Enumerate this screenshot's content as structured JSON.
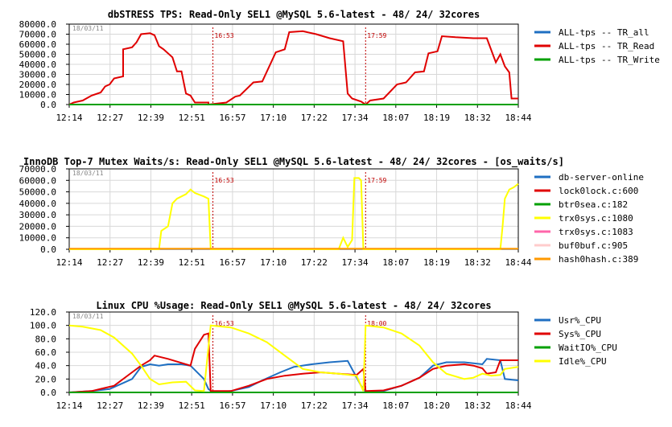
{
  "chart_data": [
    {
      "type": "line",
      "title": "dbSTRESS TPS: Read-Only SEL1 @MySQL 5.6-latest - 48/ 24/ 32cores",
      "date_stamp": "18/03/11",
      "y_ticks": [
        "80000.0",
        "70000.0",
        "60000.0",
        "50000.0",
        "40000.0",
        "30000.0",
        "20000.0",
        "10000.0",
        "0.0"
      ],
      "ylim": [
        0,
        80000
      ],
      "x_ticks": [
        "12:14",
        "12:27",
        "12:39",
        "12:51",
        "16:57",
        "17:10",
        "17:22",
        "17:34",
        "18:07",
        "18:19",
        "18:32",
        "18:44"
      ],
      "markers": [
        {
          "label": "16:53",
          "at": 0.32
        },
        {
          "label": "17:59",
          "at": 0.66
        }
      ],
      "series": [
        {
          "name": "ALL-tps -- TR_all",
          "color": "#1f6fc2",
          "values": []
        },
        {
          "name": "ALL-tps -- TR_Read",
          "color": "#e00000",
          "values": [
            [
              0,
              0
            ],
            [
              0.01,
              2000
            ],
            [
              0.03,
              4000
            ],
            [
              0.05,
              9000
            ],
            [
              0.07,
              12000
            ],
            [
              0.08,
              18000
            ],
            [
              0.09,
              20000
            ],
            [
              0.1,
              26000
            ],
            [
              0.12,
              28000
            ],
            [
              0.12,
              55000
            ],
            [
              0.14,
              57000
            ],
            [
              0.15,
              62000
            ],
            [
              0.16,
              70000
            ],
            [
              0.18,
              71000
            ],
            [
              0.19,
              69000
            ],
            [
              0.2,
              58000
            ],
            [
              0.21,
              55000
            ],
            [
              0.23,
              47000
            ],
            [
              0.24,
              33000
            ],
            [
              0.25,
              33000
            ],
            [
              0.26,
              11000
            ],
            [
              0.27,
              9000
            ],
            [
              0.28,
              2000
            ],
            [
              0.31,
              2000
            ],
            [
              0.31,
              0
            ],
            [
              0.33,
              1000
            ],
            [
              0.35,
              2000
            ],
            [
              0.37,
              8000
            ],
            [
              0.38,
              9000
            ],
            [
              0.41,
              22000
            ],
            [
              0.43,
              23000
            ],
            [
              0.46,
              52000
            ],
            [
              0.48,
              55000
            ],
            [
              0.49,
              72000
            ],
            [
              0.52,
              73000
            ],
            [
              0.55,
              70000
            ],
            [
              0.58,
              66000
            ],
            [
              0.61,
              63000
            ],
            [
              0.62,
              11000
            ],
            [
              0.63,
              6000
            ],
            [
              0.65,
              3000
            ],
            [
              0.66,
              0
            ],
            [
              0.67,
              4000
            ],
            [
              0.7,
              6000
            ],
            [
              0.73,
              20000
            ],
            [
              0.75,
              22000
            ],
            [
              0.77,
              32000
            ],
            [
              0.79,
              33000
            ],
            [
              0.8,
              51000
            ],
            [
              0.82,
              53000
            ],
            [
              0.83,
              68000
            ],
            [
              0.86,
              67000
            ],
            [
              0.9,
              66000
            ],
            [
              0.93,
              66000
            ],
            [
              0.95,
              42000
            ],
            [
              0.96,
              50000
            ],
            [
              0.97,
              38000
            ],
            [
              0.98,
              32000
            ],
            [
              0.985,
              6000
            ],
            [
              1,
              6000
            ]
          ]
        },
        {
          "name": "ALL-tps -- TR_Write",
          "color": "#00a000",
          "values": [
            [
              0,
              0
            ],
            [
              1,
              0
            ]
          ]
        }
      ]
    },
    {
      "type": "line",
      "title": "InnoDB Top-7 Mutex Waits/s: Read-Only SEL1 @MySQL 5.6-latest - 48/ 24/ 32cores - [os_waits/s]",
      "date_stamp": "18/03/11",
      "y_ticks": [
        "70000.0",
        "60000.0",
        "50000.0",
        "40000.0",
        "30000.0",
        "20000.0",
        "10000.0",
        "0.0"
      ],
      "ylim": [
        0,
        70000
      ],
      "x_ticks": [
        "12:14",
        "12:27",
        "12:39",
        "12:51",
        "16:57",
        "17:10",
        "17:22",
        "17:34",
        "18:07",
        "18:19",
        "18:32",
        "18:44"
      ],
      "markers": [
        {
          "label": "16:53",
          "at": 0.32
        },
        {
          "label": "17:59",
          "at": 0.66
        }
      ],
      "series": [
        {
          "name": "db-server-online",
          "color": "#1f6fc2",
          "values": []
        },
        {
          "name": "lock0lock.c:600",
          "color": "#e00000",
          "values": []
        },
        {
          "name": "btr0sea.c:182",
          "color": "#00a000",
          "values": []
        },
        {
          "name": "trx0sys.c:1080",
          "color": "#ffff00",
          "values": [
            [
              0,
              0
            ],
            [
              0.2,
              0
            ],
            [
              0.205,
              16000
            ],
            [
              0.22,
              20000
            ],
            [
              0.23,
              40000
            ],
            [
              0.24,
              44000
            ],
            [
              0.26,
              48000
            ],
            [
              0.27,
              52000
            ],
            [
              0.28,
              49000
            ],
            [
              0.3,
              46000
            ],
            [
              0.31,
              44000
            ],
            [
              0.315,
              0
            ],
            [
              0.6,
              0
            ],
            [
              0.61,
              10000
            ],
            [
              0.62,
              2000
            ],
            [
              0.63,
              8000
            ],
            [
              0.635,
              62000
            ],
            [
              0.645,
              62000
            ],
            [
              0.65,
              60000
            ],
            [
              0.655,
              0
            ],
            [
              0.96,
              0
            ],
            [
              0.965,
              20000
            ],
            [
              0.97,
              44000
            ],
            [
              0.98,
              52000
            ],
            [
              0.99,
              54000
            ],
            [
              1,
              57000
            ]
          ]
        },
        {
          "name": "trx0sys.c:1083",
          "color": "#ff66aa",
          "values": []
        },
        {
          "name": "buf0buf.c:905",
          "color": "#ffcccc",
          "values": []
        },
        {
          "name": "hash0hash.c:389",
          "color": "#ff9900",
          "values": [
            [
              0,
              500
            ],
            [
              1,
              500
            ]
          ]
        }
      ]
    },
    {
      "type": "line",
      "title": "Linux CPU %Usage: Read-Only SEL1 @MySQL 5.6-latest - 48/ 24/ 32cores",
      "date_stamp": "18/03/11",
      "y_ticks": [
        "120.0",
        "100.0",
        "80.0",
        "60.0",
        "40.0",
        "20.0",
        "0.0"
      ],
      "ylim": [
        0,
        120
      ],
      "x_ticks": [
        "12:14",
        "12:27",
        "12:39",
        "12:51",
        "16:57",
        "17:10",
        "17:22",
        "17:34",
        "18:07",
        "18:20",
        "18:32",
        "18:44"
      ],
      "markers": [
        {
          "label": "16:53",
          "at": 0.32
        },
        {
          "label": "18:00",
          "at": 0.66
        }
      ],
      "series": [
        {
          "name": "Usr%_CPU",
          "color": "#1f6fc2",
          "values": [
            [
              0,
              0
            ],
            [
              0.05,
              2
            ],
            [
              0.09,
              5
            ],
            [
              0.12,
              14
            ],
            [
              0.14,
              20
            ],
            [
              0.16,
              38
            ],
            [
              0.18,
              42
            ],
            [
              0.2,
              40
            ],
            [
              0.22,
              42
            ],
            [
              0.25,
              42
            ],
            [
              0.27,
              40
            ],
            [
              0.3,
              20
            ],
            [
              0.31,
              5
            ],
            [
              0.32,
              0
            ],
            [
              0.36,
              2
            ],
            [
              0.4,
              8
            ],
            [
              0.43,
              18
            ],
            [
              0.47,
              30
            ],
            [
              0.5,
              38
            ],
            [
              0.54,
              42
            ],
            [
              0.58,
              45
            ],
            [
              0.62,
              47
            ],
            [
              0.65,
              10
            ],
            [
              0.66,
              1
            ],
            [
              0.7,
              2
            ],
            [
              0.74,
              10
            ],
            [
              0.78,
              22
            ],
            [
              0.81,
              40
            ],
            [
              0.84,
              45
            ],
            [
              0.88,
              45
            ],
            [
              0.92,
              42
            ],
            [
              0.93,
              50
            ],
            [
              0.96,
              48
            ],
            [
              0.97,
              20
            ],
            [
              1,
              18
            ]
          ]
        },
        {
          "name": "Sys%_CPU",
          "color": "#e00000",
          "values": [
            [
              0,
              0
            ],
            [
              0.05,
              2
            ],
            [
              0.1,
              10
            ],
            [
              0.14,
              30
            ],
            [
              0.16,
              40
            ],
            [
              0.18,
              48
            ],
            [
              0.19,
              55
            ],
            [
              0.22,
              50
            ],
            [
              0.25,
              44
            ],
            [
              0.27,
              40
            ],
            [
              0.28,
              65
            ],
            [
              0.3,
              86
            ],
            [
              0.31,
              88
            ],
            [
              0.315,
              2
            ],
            [
              0.36,
              2
            ],
            [
              0.4,
              10
            ],
            [
              0.44,
              20
            ],
            [
              0.48,
              25
            ],
            [
              0.52,
              28
            ],
            [
              0.56,
              30
            ],
            [
              0.6,
              28
            ],
            [
              0.64,
              26
            ],
            [
              0.655,
              35
            ],
            [
              0.66,
              2
            ],
            [
              0.7,
              3
            ],
            [
              0.74,
              10
            ],
            [
              0.78,
              22
            ],
            [
              0.81,
              35
            ],
            [
              0.84,
              40
            ],
            [
              0.88,
              42
            ],
            [
              0.9,
              40
            ],
            [
              0.92,
              36
            ],
            [
              0.93,
              28
            ],
            [
              0.95,
              30
            ],
            [
              0.96,
              48
            ],
            [
              1,
              48
            ]
          ]
        },
        {
          "name": "WaitIO%_CPU",
          "color": "#00a000",
          "values": [
            [
              0,
              0
            ],
            [
              1,
              0
            ]
          ]
        },
        {
          "name": "Idle%_CPU",
          "color": "#ffff00",
          "values": [
            [
              0,
              100
            ],
            [
              0.03,
              98
            ],
            [
              0.07,
              93
            ],
            [
              0.1,
              82
            ],
            [
              0.14,
              58
            ],
            [
              0.16,
              40
            ],
            [
              0.18,
              20
            ],
            [
              0.2,
              12
            ],
            [
              0.23,
              15
            ],
            [
              0.26,
              16
            ],
            [
              0.28,
              3
            ],
            [
              0.3,
              2
            ],
            [
              0.315,
              100
            ],
            [
              0.36,
              97
            ],
            [
              0.4,
              88
            ],
            [
              0.44,
              75
            ],
            [
              0.48,
              55
            ],
            [
              0.52,
              35
            ],
            [
              0.56,
              30
            ],
            [
              0.6,
              28
            ],
            [
              0.64,
              25
            ],
            [
              0.655,
              2
            ],
            [
              0.66,
              100
            ],
            [
              0.7,
              97
            ],
            [
              0.74,
              88
            ],
            [
              0.78,
              70
            ],
            [
              0.81,
              45
            ],
            [
              0.84,
              28
            ],
            [
              0.88,
              20
            ],
            [
              0.9,
              22
            ],
            [
              0.92,
              28
            ],
            [
              0.94,
              25
            ],
            [
              0.96,
              26
            ],
            [
              0.97,
              35
            ],
            [
              1,
              38
            ]
          ]
        }
      ]
    }
  ]
}
